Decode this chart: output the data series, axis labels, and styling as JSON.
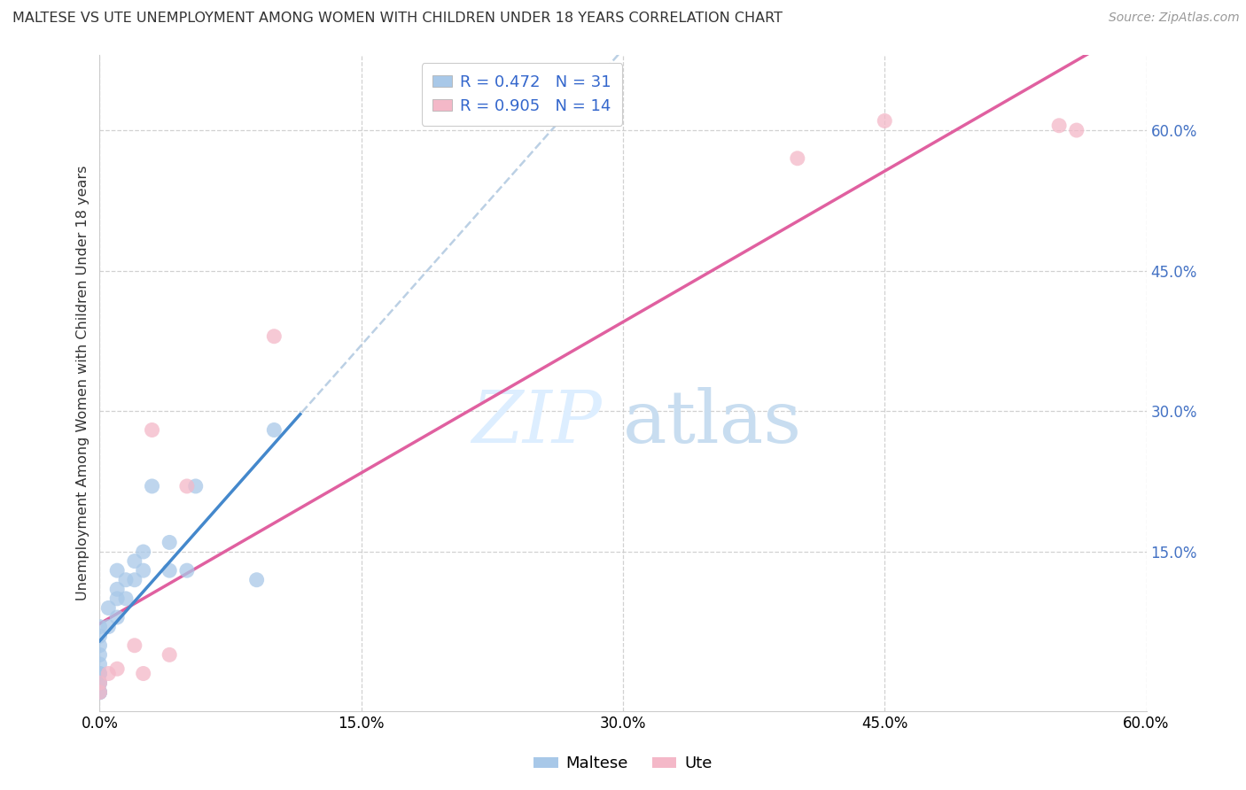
{
  "title": "MALTESE VS UTE UNEMPLOYMENT AMONG WOMEN WITH CHILDREN UNDER 18 YEARS CORRELATION CHART",
  "source": "Source: ZipAtlas.com",
  "ylabel": "Unemployment Among Women with Children Under 18 years",
  "xlim": [
    0.0,
    0.6
  ],
  "ylim": [
    -0.02,
    0.68
  ],
  "xticks": [
    0.0,
    0.15,
    0.3,
    0.45,
    0.6
  ],
  "xtick_labels": [
    "0.0%",
    "15.0%",
    "30.0%",
    "45.0%",
    "60.0%"
  ],
  "ytick_labels_right": [
    "15.0%",
    "30.0%",
    "45.0%",
    "60.0%"
  ],
  "yticks_right": [
    0.15,
    0.3,
    0.45,
    0.6
  ],
  "watermark_zip": "ZIP",
  "watermark_atlas": "atlas",
  "maltese_color": "#a8c8e8",
  "ute_color": "#f4b8c8",
  "maltese_line_color": "#4488cc",
  "ute_line_color": "#e060a0",
  "maltese_dash_color": "#b0c8e0",
  "grid_color": "#cccccc",
  "maltese_x": [
    0.0,
    0.0,
    0.0,
    0.0,
    0.0,
    0.0,
    0.0,
    0.0,
    0.0,
    0.0,
    0.0,
    0.0,
    0.005,
    0.005,
    0.01,
    0.01,
    0.01,
    0.01,
    0.015,
    0.015,
    0.02,
    0.02,
    0.025,
    0.025,
    0.03,
    0.04,
    0.04,
    0.05,
    0.055,
    0.09,
    0.1
  ],
  "maltese_y": [
    0.0,
    0.0,
    0.0,
    0.01,
    0.01,
    0.02,
    0.02,
    0.03,
    0.04,
    0.05,
    0.06,
    0.07,
    0.07,
    0.09,
    0.08,
    0.1,
    0.11,
    0.13,
    0.1,
    0.12,
    0.12,
    0.14,
    0.13,
    0.15,
    0.22,
    0.13,
    0.16,
    0.13,
    0.22,
    0.12,
    0.28
  ],
  "ute_x": [
    0.0,
    0.0,
    0.005,
    0.01,
    0.02,
    0.025,
    0.03,
    0.04,
    0.05,
    0.1,
    0.4,
    0.45,
    0.55,
    0.56
  ],
  "ute_y": [
    0.0,
    0.01,
    0.02,
    0.025,
    0.05,
    0.02,
    0.28,
    0.04,
    0.22,
    0.38,
    0.57,
    0.61,
    0.605,
    0.6
  ],
  "maltese_R": 0.472,
  "maltese_N": 31,
  "ute_R": 0.905,
  "ute_N": 14,
  "legend_fontsize": 13,
  "tick_fontsize": 12
}
